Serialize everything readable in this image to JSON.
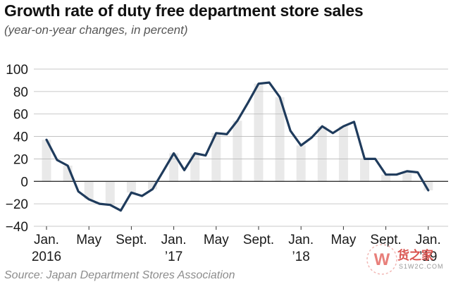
{
  "chart_data": {
    "type": "line",
    "title": "Growth rate of duty free department store sales",
    "subtitle": "(year-on-year changes, in percent)",
    "source": "Source: Japan Department Stores Association",
    "xlabel": "",
    "ylabel": "",
    "ylim": [
      -40,
      100
    ],
    "yticks": [
      100,
      80,
      60,
      40,
      20,
      0,
      -20,
      -40
    ],
    "grid": "horizontal",
    "x_tick_labels": [
      {
        "index": 0,
        "line1": "Jan.",
        "line2": "2016"
      },
      {
        "index": 4,
        "line1": "May",
        "line2": ""
      },
      {
        "index": 8,
        "line1": "Sept.",
        "line2": ""
      },
      {
        "index": 12,
        "line1": "Jan.",
        "line2": "’17"
      },
      {
        "index": 16,
        "line1": "May",
        "line2": ""
      },
      {
        "index": 20,
        "line1": "Sept.",
        "line2": ""
      },
      {
        "index": 24,
        "line1": "Jan.",
        "line2": "’18"
      },
      {
        "index": 28,
        "line1": "May",
        "line2": ""
      },
      {
        "index": 32,
        "line1": "Sept.",
        "line2": ""
      },
      {
        "index": 36,
        "line1": "Jan.",
        "line2": "’19"
      }
    ],
    "series": [
      {
        "name": "Growth rate",
        "values": [
          37,
          19,
          14,
          -9,
          -16,
          -20,
          -21,
          -26,
          -10,
          -13,
          -7,
          9,
          25,
          10,
          25,
          23,
          43,
          42,
          54,
          70,
          87,
          88,
          75,
          45,
          32,
          39,
          49,
          43,
          49,
          53,
          20,
          20,
          6,
          6,
          9,
          8,
          -8
        ]
      }
    ]
  },
  "watermark": {
    "logo_letter": "W",
    "text": "货之家",
    "sub": "S1W2C.COM"
  }
}
